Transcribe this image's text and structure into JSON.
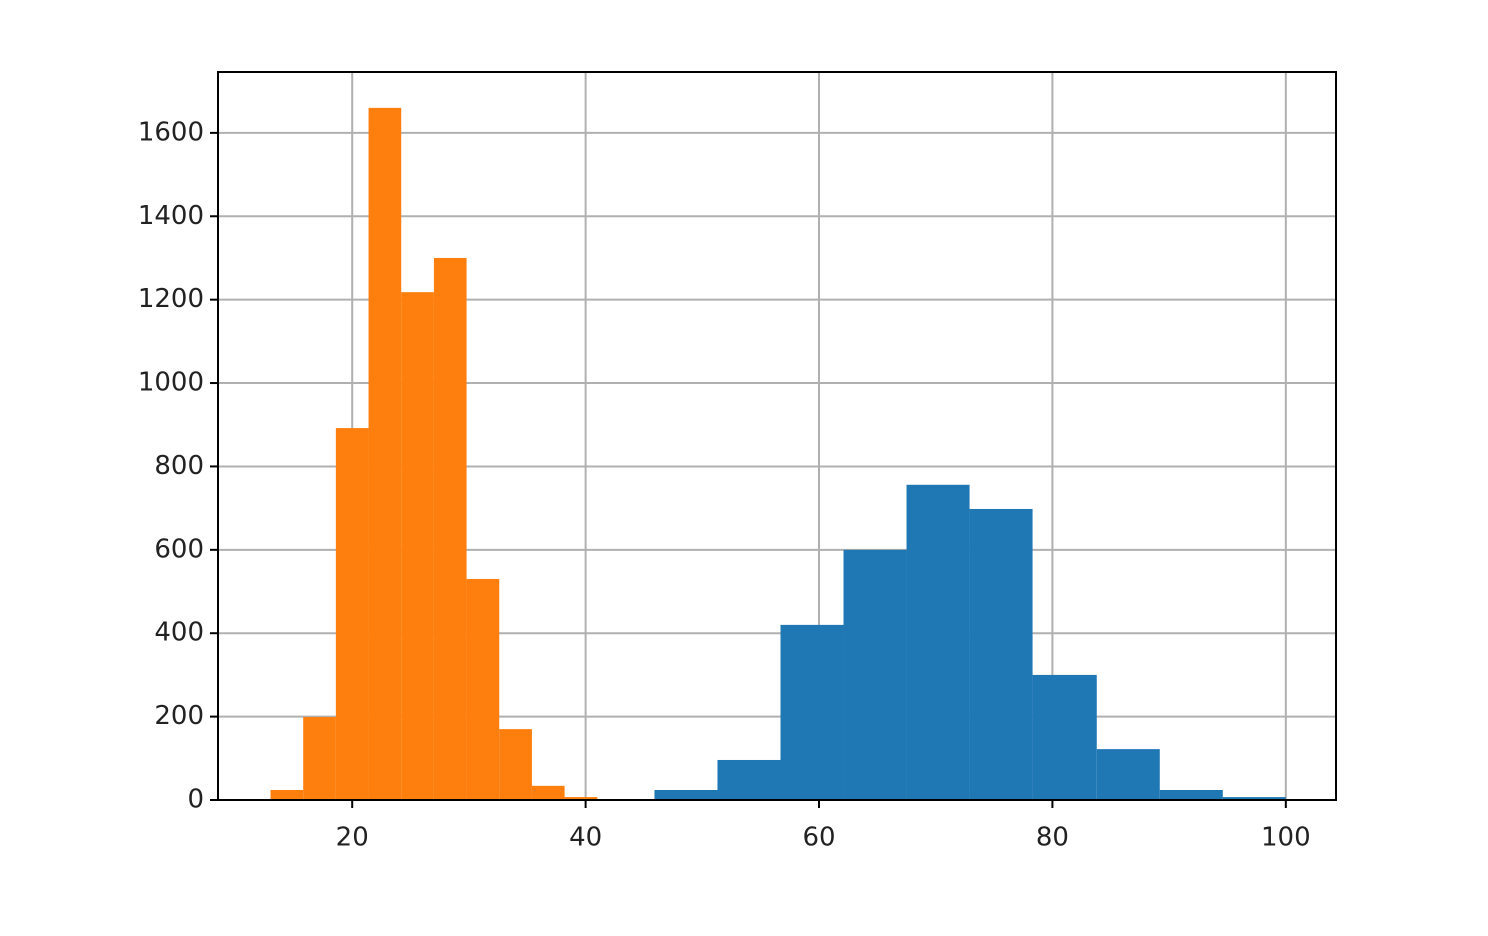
{
  "chart_data": {
    "type": "histogram",
    "series": [
      {
        "color": "#1f77b4",
        "bins": [
          45.9,
          51.3,
          56.7,
          62.1,
          67.5,
          72.9,
          78.3,
          83.8,
          89.2,
          94.6,
          100
        ],
        "values": [
          24,
          96,
          420,
          600,
          756,
          698,
          300,
          122,
          24,
          7
        ]
      },
      {
        "color": "#ff7f0e",
        "bins": [
          13,
          15.8,
          18.6,
          21.4,
          24.2,
          27,
          29.8,
          32.6,
          35.4,
          38.2,
          41
        ],
        "values": [
          24,
          199,
          892,
          1660,
          1218,
          1300,
          530,
          170,
          34,
          7
        ]
      }
    ],
    "xlim": [
      8.5,
      104.3
    ],
    "ylim": [
      0,
      1746
    ],
    "xticks": [
      20,
      40,
      60,
      80,
      100
    ],
    "yticks": [
      0,
      200,
      400,
      600,
      800,
      1000,
      1200,
      1400,
      1600
    ],
    "grid": true
  }
}
